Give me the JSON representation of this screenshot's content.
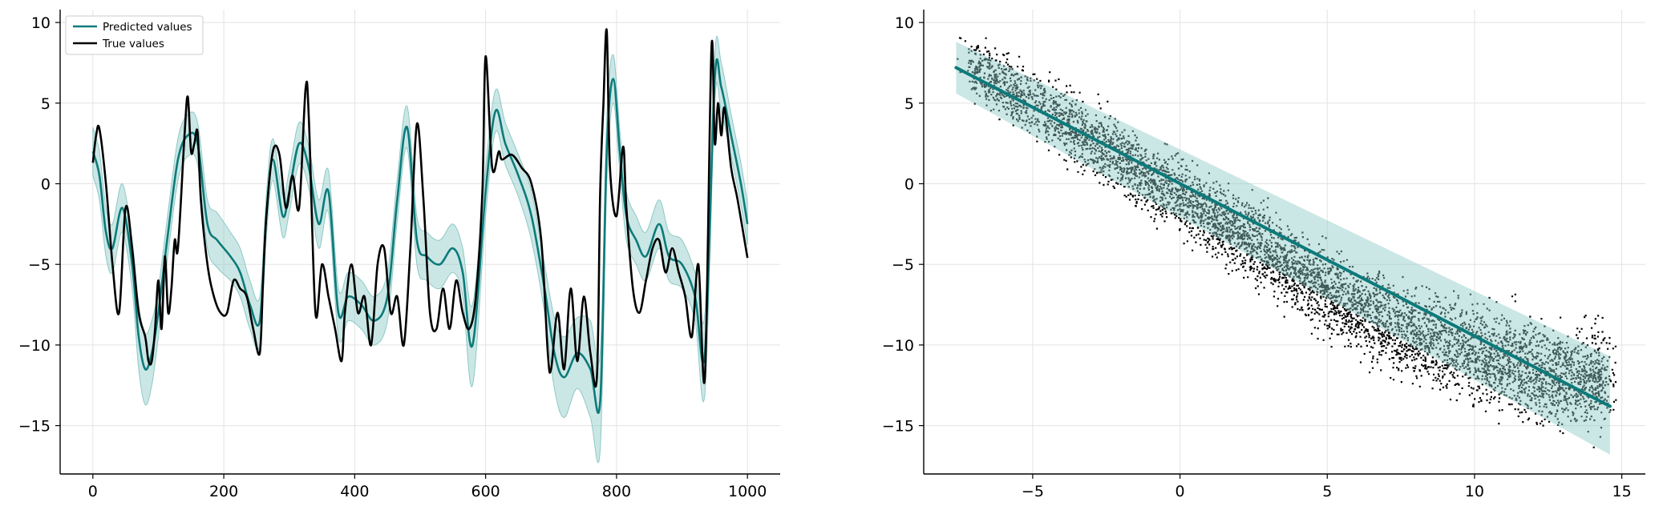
{
  "chart_data": [
    {
      "type": "line",
      "title": "",
      "xlabel": "",
      "ylabel": "",
      "xlim": [
        -50,
        1050
      ],
      "ylim": [
        -18,
        10.8
      ],
      "x_ticks": [
        0,
        200,
        400,
        600,
        800,
        1000
      ],
      "y_ticks": [
        10,
        5,
        0,
        -5,
        -10,
        -15
      ],
      "x_tick_labels": [
        "0",
        "200",
        "400",
        "600",
        "800",
        "1000"
      ],
      "y_tick_labels": [
        "10",
        "5",
        "0",
        "−5",
        "−10",
        "−15"
      ],
      "grid": true,
      "legend": {
        "position": "top-left",
        "entries": [
          "Predicted values",
          "True values"
        ]
      },
      "series": [
        {
          "name": "Predicted values",
          "color": "#0d7a7a",
          "band_color": "#8cc9c6",
          "x": [
            0,
            10,
            20,
            30,
            45,
            60,
            70,
            80,
            90,
            100,
            115,
            130,
            145,
            160,
            175,
            190,
            210,
            225,
            240,
            255,
            265,
            275,
            290,
            300,
            315,
            330,
            345,
            360,
            375,
            390,
            410,
            430,
            450,
            465,
            480,
            495,
            510,
            530,
            550,
            565,
            580,
            600,
            615,
            630,
            650,
            670,
            690,
            705,
            720,
            740,
            760,
            775,
            785,
            795,
            805,
            815,
            830,
            845,
            865,
            880,
            900,
            920,
            935,
            950,
            960,
            975,
            990,
            1000
          ],
          "y": [
            2,
            0.5,
            -3,
            -4,
            -1.5,
            -5,
            -9.5,
            -11.5,
            -10.5,
            -8,
            -3,
            1.5,
            3,
            2.5,
            -2.5,
            -3.5,
            -4.5,
            -5.5,
            -7.5,
            -8.5,
            -2,
            1.5,
            -2,
            -0.5,
            2.5,
            1,
            -2.5,
            -0.5,
            -8,
            -7,
            -7.5,
            -8.5,
            -7,
            -1,
            3.5,
            -3.5,
            -4.5,
            -5,
            -4,
            -5.5,
            -10,
            -0.5,
            4.5,
            2.5,
            0.5,
            -2,
            -6.5,
            -10.5,
            -12,
            -10.5,
            -11.5,
            -13.5,
            2,
            6.5,
            2,
            -2,
            -3.5,
            -4.5,
            -2.5,
            -4.5,
            -5,
            -7,
            -10.5,
            6.5,
            6,
            3,
            0,
            -2.5
          ],
          "band": [
            1.5,
            1.5,
            1.5,
            1.5,
            1.5,
            1.5,
            2,
            2.2,
            2,
            1.5,
            1.3,
            1.3,
            1.3,
            1.3,
            1.5,
            1.7,
            1.5,
            1.5,
            1.5,
            1.5,
            1.3,
            1.3,
            1.3,
            1.3,
            1.3,
            1.3,
            1.5,
            1.3,
            1.5,
            1.5,
            1.5,
            1.5,
            1.5,
            1.3,
            1.3,
            1.5,
            1.5,
            1.5,
            1.5,
            1.5,
            2.5,
            1.5,
            1.3,
            1.3,
            1.3,
            1.5,
            1.5,
            2.2,
            2.5,
            2.2,
            3,
            3,
            2,
            1.5,
            1.3,
            1.5,
            1.5,
            1.5,
            1.5,
            1.5,
            1.5,
            1.5,
            2.5,
            1.5,
            1.5,
            1.3,
            1.3,
            1.3
          ]
        },
        {
          "name": "True values",
          "color": "#000000",
          "x": [
            0,
            5,
            10,
            20,
            30,
            40,
            50,
            60,
            70,
            80,
            85,
            90,
            95,
            100,
            105,
            110,
            115,
            120,
            125,
            130,
            140,
            145,
            150,
            155,
            160,
            165,
            175,
            185,
            195,
            205,
            215,
            225,
            235,
            245,
            255,
            260,
            265,
            275,
            285,
            295,
            305,
            315,
            325,
            330,
            340,
            350,
            360,
            370,
            380,
            385,
            395,
            405,
            415,
            425,
            435,
            445,
            455,
            465,
            475,
            485,
            495,
            505,
            515,
            525,
            535,
            545,
            555,
            565,
            575,
            585,
            595,
            600,
            610,
            620,
            625,
            640,
            655,
            670,
            685,
            695,
            700,
            710,
            720,
            730,
            740,
            750,
            760,
            770,
            775,
            780,
            785,
            790,
            800,
            810,
            815,
            825,
            835,
            845,
            855,
            865,
            875,
            885,
            895,
            905,
            915,
            925,
            935,
            945,
            950,
            955,
            960,
            965,
            975,
            985,
            1000
          ],
          "y": [
            1.3,
            3,
            3.4,
            0,
            -5,
            -8,
            -1.5,
            -4,
            -8,
            -9.5,
            -11,
            -11,
            -9,
            -6,
            -9,
            -4.5,
            -8,
            -6.5,
            -3.5,
            -4,
            3,
            5.4,
            2,
            2.5,
            3.2,
            -1,
            -5,
            -7,
            -8,
            -8,
            -6,
            -6.5,
            -7,
            -9,
            -10.5,
            -6,
            -2,
            2,
            1.8,
            -1.5,
            0.5,
            -1.5,
            5.9,
            4,
            -8,
            -5,
            -7,
            -9,
            -11,
            -8,
            -5,
            -8,
            -7,
            -10,
            -5,
            -4,
            -8,
            -7,
            -10,
            -4,
            3.7,
            -1,
            -8,
            -9,
            -6.5,
            -9,
            -6,
            -8,
            -9,
            -7,
            -0.5,
            7.9,
            1,
            2,
            1.5,
            1.8,
            1,
            0,
            -3.5,
            -10.5,
            -11.5,
            -8,
            -11.5,
            -6.5,
            -11,
            -7,
            -10.5,
            -12,
            -0.5,
            5,
            9.5,
            1,
            -2,
            2.3,
            -1.5,
            -6.5,
            -8,
            -6,
            -4,
            -3.5,
            -5.5,
            -4,
            -5.5,
            -7,
            -9.5,
            -5,
            -12,
            8.4,
            2.5,
            5,
            3,
            4.7,
            1,
            -1,
            -4.6
          ]
        }
      ]
    },
    {
      "type": "scatter",
      "title": "",
      "xlabel": "",
      "ylabel": "",
      "xlim": [
        -8.7,
        15.8
      ],
      "ylim": [
        -18,
        10.8
      ],
      "x_ticks": [
        -5,
        0,
        5,
        10,
        15
      ],
      "y_ticks": [
        10,
        5,
        0,
        -5,
        -10,
        -15
      ],
      "x_tick_labels": [
        "−5",
        "0",
        "5",
        "10",
        "15"
      ],
      "y_tick_labels": [
        "10",
        "5",
        "0",
        "−5",
        "−10",
        "−15"
      ],
      "grid": true,
      "n_points_approx": 20000,
      "point_color": "#000000",
      "fit_line": {
        "color": "#0d7a7a",
        "band_color": "#8cc9c6",
        "x": [
          -7.6,
          14.6
        ],
        "y": [
          7.2,
          -13.8
        ],
        "band_lower": [
          5.6,
          -16.8
        ],
        "band_upper": [
          8.8,
          -10.7
        ]
      },
      "scatter_cloud": {
        "centerline_x": [
          -7.3,
          -5,
          -2.5,
          0,
          2.5,
          5,
          7.5,
          10,
          13,
          14.5
        ],
        "centerline_y": [
          7.5,
          5,
          2.2,
          -0.8,
          -3.5,
          -6.8,
          -9,
          -10.5,
          -12,
          -12
        ],
        "spread": [
          1.5,
          1.9,
          2.0,
          2.0,
          2.1,
          2.3,
          2.5,
          2.7,
          2.7,
          2.6
        ]
      }
    }
  ]
}
